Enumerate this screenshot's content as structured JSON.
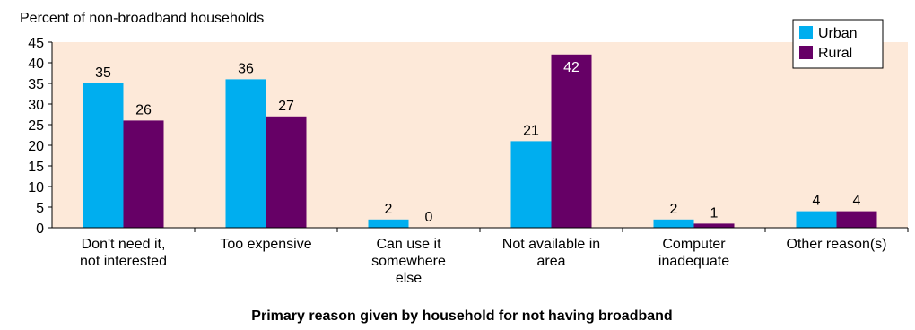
{
  "chart_data": {
    "type": "bar",
    "ylabel": "Percent of non-broadband households",
    "xlabel": "Primary reason given by household for not having broadband",
    "categories": [
      [
        "Don't need it,",
        "not interested"
      ],
      [
        "Too expensive"
      ],
      [
        "Can use it",
        "somewhere",
        "else"
      ],
      [
        "Not available in",
        "area"
      ],
      [
        "Computer",
        "inadequate"
      ],
      [
        "Other reason(s)"
      ]
    ],
    "series": [
      {
        "name": "Urban",
        "color": "#00aeef",
        "values": [
          35,
          36,
          2,
          21,
          2,
          4
        ]
      },
      {
        "name": "Rural",
        "color": "#660066",
        "values": [
          26,
          27,
          0,
          42,
          1,
          4
        ]
      }
    ],
    "data_labels": {
      "Urban": [
        "35",
        "36",
        "2",
        "21",
        "2",
        "4"
      ],
      "Rural": [
        "26",
        "27",
        "0",
        "42",
        "1",
        "4"
      ]
    },
    "ylim": [
      0,
      45
    ],
    "yticks": [
      0,
      5,
      10,
      15,
      20,
      25,
      30,
      35,
      40,
      45
    ],
    "legend_position": "top-right",
    "plot_background": "#fde9d9",
    "grid": false
  }
}
